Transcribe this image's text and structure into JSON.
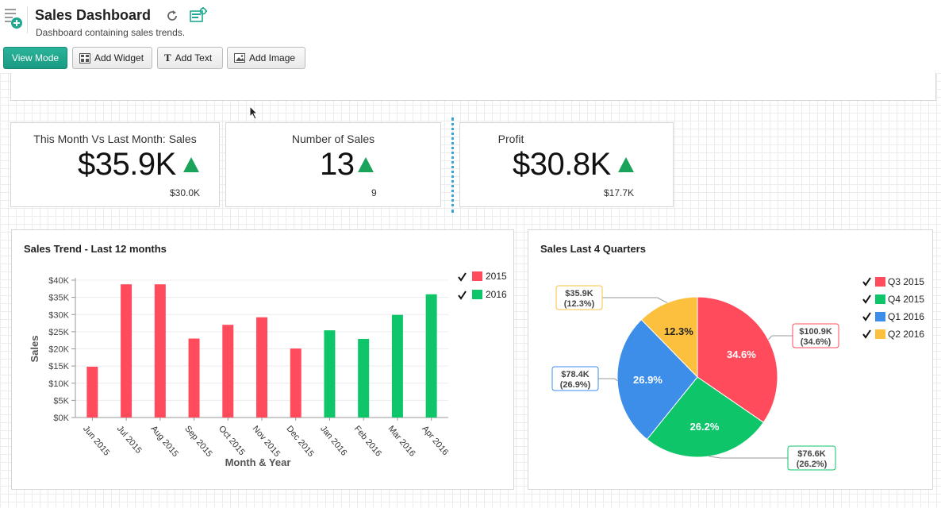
{
  "header": {
    "title": "Sales Dashboard",
    "subtitle": "Dashboard containing sales trends."
  },
  "toolbar": {
    "view_mode": "View Mode",
    "add_widget": "Add Widget",
    "add_text": "Add Text",
    "add_image": "Add Image"
  },
  "kpis": [
    {
      "title": "This Month Vs Last Month: Sales",
      "value": "$35.9K",
      "previous": "$30.0K",
      "trend": "up"
    },
    {
      "title": "Number of Sales",
      "value": "13",
      "previous": "9",
      "trend": "up"
    },
    {
      "title": "Profit",
      "value": "$30.8K",
      "previous": "$17.7K",
      "trend": "up"
    }
  ],
  "colors": {
    "primary": "#1fa88f",
    "up": "#19a35b",
    "s2015": "#ff4b5c",
    "s2016": "#0ec56a",
    "q3": "#ff4b5c",
    "q4": "#0ec56a",
    "q1": "#3d8ee8",
    "q2": "#fcc03e"
  },
  "chart_data": [
    {
      "type": "bar",
      "title": "Sales Trend - Last 12 months",
      "xlabel": "Month & Year",
      "ylabel": "Sales",
      "ylim": [
        0,
        40000
      ],
      "yticks": [
        "$0K",
        "$5K",
        "$10K",
        "$15K",
        "$20K",
        "$25K",
        "$30K",
        "$35K",
        "$40K"
      ],
      "categories": [
        "Jun 2015",
        "Jul 2015",
        "Aug 2015",
        "Sep 2015",
        "Oct 2015",
        "Nov 2015",
        "Dec 2015",
        "Jan 2016",
        "Feb 2016",
        "Mar 2016",
        "Apr 2016"
      ],
      "series": [
        {
          "name": "2015",
          "values": [
            14800,
            38800,
            38800,
            23000,
            27000,
            29200,
            20100,
            null,
            null,
            null,
            null
          ]
        },
        {
          "name": "2016",
          "values": [
            null,
            null,
            null,
            null,
            null,
            null,
            null,
            25400,
            22900,
            29900,
            35900
          ]
        }
      ],
      "legend": [
        "2015",
        "2016"
      ]
    },
    {
      "type": "pie",
      "title": "Sales Last 4 Quarters",
      "labels": [
        "Q3 2015",
        "Q4 2015",
        "Q1 2016",
        "Q2 2016"
      ],
      "values": [
        100.9,
        76.6,
        78.4,
        35.9
      ],
      "percents": [
        "34.6%",
        "26.2%",
        "26.9%",
        "12.3%"
      ],
      "callouts": [
        {
          "value": "$100.9K",
          "pct": "(34.6%)"
        },
        {
          "value": "$76.6K",
          "pct": "(26.2%)"
        },
        {
          "value": "$78.4K",
          "pct": "(26.9%)"
        },
        {
          "value": "$35.9K",
          "pct": "(12.3%)"
        }
      ]
    }
  ]
}
